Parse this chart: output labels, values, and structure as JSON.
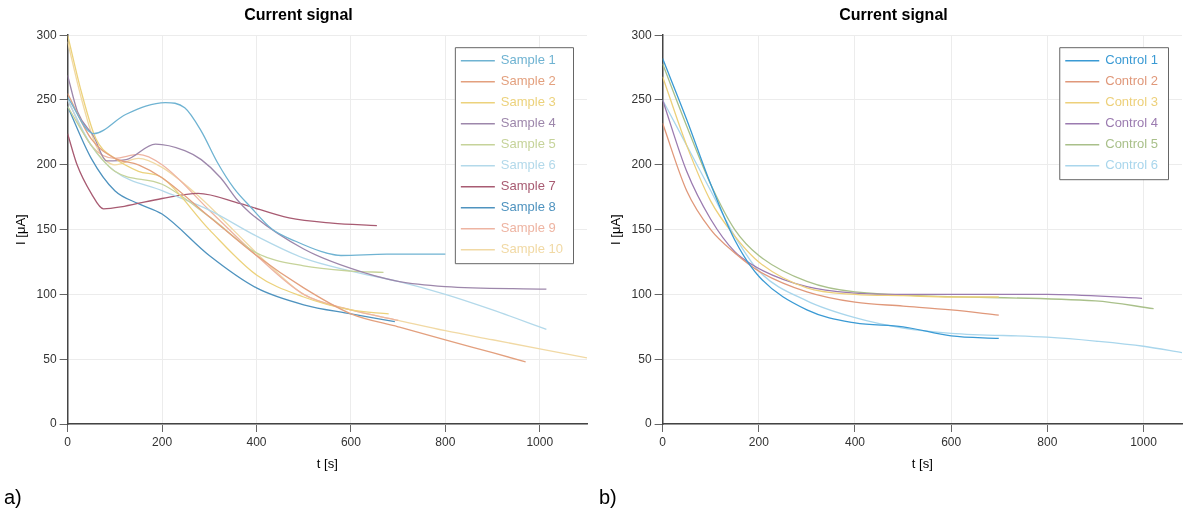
{
  "chart_data": [
    {
      "type": "line",
      "title": "Current signal",
      "xlabel": "t [s]",
      "ylabel": "I [μA]",
      "xlim": [
        0,
        1100
      ],
      "ylim": [
        0,
        300
      ],
      "xticks": [
        0,
        200,
        400,
        600,
        800,
        1000
      ],
      "yticks": [
        0,
        50,
        100,
        150,
        200,
        250,
        300
      ],
      "grid": true,
      "legend": "top right",
      "marker": "none",
      "line_style": "solid",
      "annotations": [
        "a)"
      ],
      "series": [
        {
          "name": "Sample 1",
          "color": "#6fb3d2",
          "x": [
            0,
            55,
            124,
            207,
            248,
            283,
            317,
            352,
            386,
            434,
            483,
            538,
            579,
            676,
            800
          ],
          "values": [
            252,
            224,
            239,
            248,
            244,
            226,
            202,
            182,
            168,
            150,
            141,
            133,
            130,
            131,
            131
          ]
        },
        {
          "name": "Sample 2",
          "color": "#e3a07e",
          "x": [
            0,
            50,
            100,
            150,
            200,
            300,
            400,
            500,
            600,
            700,
            800,
            900,
            970
          ],
          "values": [
            255,
            220,
            205,
            200,
            190,
            160,
            130,
            105,
            85,
            75,
            65,
            55,
            48
          ]
        },
        {
          "name": "Sample 3",
          "color": "#ecd27c",
          "x": [
            0,
            30,
            60,
            100,
            150,
            200,
            300,
            400,
            500,
            600,
            680
          ],
          "values": [
            300,
            255,
            220,
            205,
            195,
            190,
            150,
            115,
            98,
            88,
            85
          ]
        },
        {
          "name": "Sample 4",
          "color": "#9d87ab",
          "x": [
            0,
            21,
            55,
            83,
            124,
            186,
            248,
            283,
            324,
            359,
            386,
            500,
            600,
            700,
            800,
            1014
          ],
          "values": [
            269,
            241,
            222,
            203,
            204,
            216,
            211,
            204,
            190,
            173,
            163,
            135,
            120,
            110,
            106,
            104
          ]
        },
        {
          "name": "Sample 5",
          "color": "#c6d39a",
          "x": [
            0,
            50,
            100,
            200,
            300,
            400,
            500,
            600,
            669
          ],
          "values": [
            245,
            215,
            195,
            185,
            160,
            132,
            122,
            118,
            117
          ]
        },
        {
          "name": "Sample 6",
          "color": "#b3d9ea",
          "x": [
            0,
            50,
            100,
            200,
            300,
            400,
            500,
            600,
            700,
            800,
            900,
            1014
          ],
          "values": [
            250,
            215,
            195,
            180,
            165,
            145,
            128,
            118,
            110,
            100,
            88,
            73
          ]
        },
        {
          "name": "Sample 7",
          "color": "#a85b72",
          "x": [
            0,
            20,
            50,
            76,
            120,
            200,
            276,
            366,
            469,
            560,
            655
          ],
          "values": [
            224,
            200,
            178,
            166,
            168,
            174,
            178,
            170,
            159,
            155,
            153
          ]
        },
        {
          "name": "Sample 8",
          "color": "#4f93bf",
          "x": [
            0,
            50,
            100,
            150,
            200,
            300,
            400,
            500,
            600,
            693
          ],
          "values": [
            245,
            205,
            180,
            170,
            162,
            130,
            105,
            92,
            85,
            79
          ]
        },
        {
          "name": "Sample 9",
          "color": "#eeb4a2",
          "x": [
            0,
            50,
            100,
            150,
            200,
            300,
            400,
            500,
            600,
            700
          ],
          "values": [
            250,
            215,
            205,
            208,
            200,
            165,
            130,
            100,
            88,
            80
          ]
        },
        {
          "name": "Sample 10",
          "color": "#f1d9a4",
          "x": [
            0,
            30,
            60,
            100,
            150,
            200,
            280,
            350,
            420,
            500,
            600,
            700,
            800,
            900,
            1000,
            1100
          ],
          "values": [
            295,
            250,
            215,
            200,
            205,
            198,
            175,
            150,
            125,
            100,
            88,
            80,
            72,
            65,
            58,
            51
          ]
        }
      ]
    },
    {
      "type": "line",
      "title": "Current signal",
      "xlabel": "t [s]",
      "ylabel": "I [μA]",
      "xlim": [
        0,
        1080
      ],
      "ylim": [
        0,
        300
      ],
      "xticks": [
        0,
        200,
        400,
        600,
        800,
        1000
      ],
      "yticks": [
        0,
        50,
        100,
        150,
        200,
        250,
        300
      ],
      "grid": true,
      "legend": "top right",
      "marker": "none",
      "line_style": "solid",
      "annotations": [
        "b)"
      ],
      "series": [
        {
          "name": "Control 1",
          "color": "#3a9ad4",
          "x": [
            0,
            50,
            100,
            150,
            200,
            300,
            400,
            500,
            600,
            699
          ],
          "values": [
            282,
            235,
            185,
            142,
            114,
            88,
            78,
            75,
            68,
            66
          ]
        },
        {
          "name": "Control 2",
          "color": "#e0987a",
          "x": [
            0,
            50,
            100,
            150,
            200,
            300,
            400,
            500,
            600,
            699
          ],
          "values": [
            232,
            180,
            150,
            132,
            118,
            102,
            94,
            91,
            88,
            84
          ]
        },
        {
          "name": "Control 3",
          "color": "#edd07a",
          "x": [
            0,
            50,
            100,
            150,
            200,
            300,
            400,
            500,
            600,
            699
          ],
          "values": [
            268,
            215,
            172,
            145,
            125,
            105,
            100,
            99,
            98,
            98
          ]
        },
        {
          "name": "Control 4",
          "color": "#9b7bb0",
          "x": [
            0,
            50,
            100,
            150,
            200,
            300,
            400,
            500,
            600,
            800,
            997
          ],
          "values": [
            250,
            195,
            158,
            133,
            120,
            106,
            101,
            100,
            100,
            100,
            97
          ]
        },
        {
          "name": "Control 5",
          "color": "#a9c08a",
          "x": [
            0,
            50,
            100,
            150,
            200,
            300,
            400,
            900,
            1021
          ],
          "values": [
            278,
            230,
            185,
            150,
            130,
            110,
            102,
            95,
            89
          ]
        },
        {
          "name": "Control 6",
          "color": "#a9d6ec",
          "x": [
            0,
            50,
            100,
            150,
            200,
            300,
            400,
            500,
            600,
            800,
            900,
            1000,
            1080
          ],
          "values": [
            250,
            215,
            180,
            145,
            118,
            95,
            82,
            74,
            70,
            67,
            64,
            60,
            55
          ]
        }
      ]
    }
  ]
}
